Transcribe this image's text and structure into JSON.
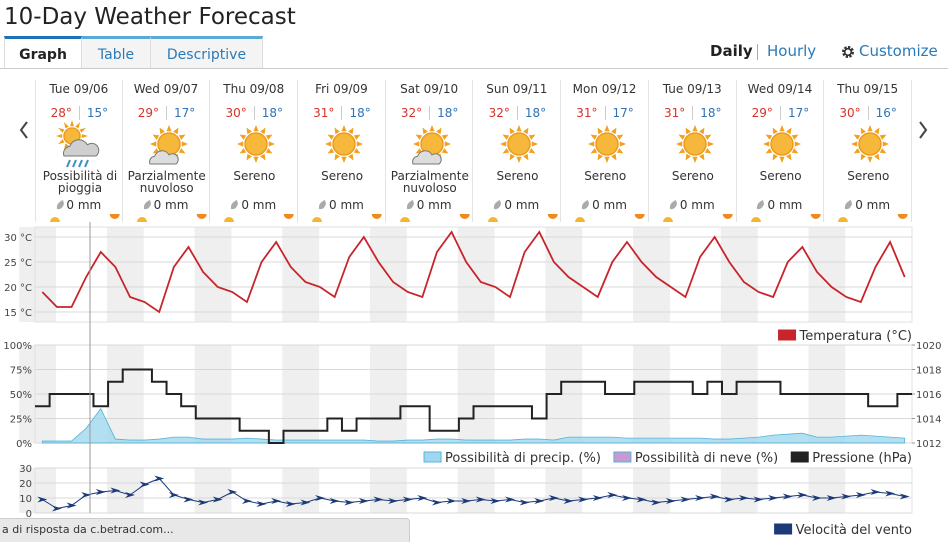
{
  "header": {
    "title": "10-Day Weather Forecast"
  },
  "tabs": [
    "Graph",
    "Table",
    "Descriptive"
  ],
  "views": [
    "Daily",
    "Hourly"
  ],
  "customize": "Customize",
  "days": [
    {
      "date": "Tue 09/06",
      "high": "28°",
      "low": "15°",
      "condition": "Possibilità di pioggia",
      "precip": "0 mm"
    },
    {
      "date": "Wed 09/07",
      "high": "29°",
      "low": "17°",
      "condition": "Parzialmente nuvoloso",
      "precip": "0 mm"
    },
    {
      "date": "Thu 09/08",
      "high": "30°",
      "low": "18°",
      "condition": "Sereno",
      "precip": "0 mm"
    },
    {
      "date": "Fri 09/09",
      "high": "31°",
      "low": "18°",
      "condition": "Sereno",
      "precip": "0 mm"
    },
    {
      "date": "Sat 09/10",
      "high": "32°",
      "low": "18°",
      "condition": "Parzialmente nuvoloso",
      "precip": "0 mm"
    },
    {
      "date": "Sun 09/11",
      "high": "32°",
      "low": "18°",
      "condition": "Sereno",
      "precip": "0 mm"
    },
    {
      "date": "Mon 09/12",
      "high": "31°",
      "low": "17°",
      "condition": "Sereno",
      "precip": "0 mm"
    },
    {
      "date": "Tue 09/13",
      "high": "31°",
      "low": "18°",
      "condition": "Sereno",
      "precip": "0 mm"
    },
    {
      "date": "Wed 09/14",
      "high": "29°",
      "low": "17°",
      "condition": "Sereno",
      "precip": "0 mm"
    },
    {
      "date": "Thu 09/15",
      "high": "30°",
      "low": "16°",
      "condition": "Sereno",
      "precip": "0 mm"
    }
  ],
  "status": "a di risposta da c.betrad.com...",
  "chart_data": [
    {
      "type": "line",
      "series": [
        {
          "name": "Temperatura (°C)",
          "color": "#c8242b",
          "values": [
            19,
            16,
            16,
            22,
            27,
            24,
            18,
            17,
            15,
            24,
            28,
            23,
            20,
            19,
            17,
            25,
            29,
            24,
            21,
            20,
            18,
            26,
            30,
            25,
            21,
            19,
            18,
            27,
            31,
            25,
            21,
            20,
            18,
            27,
            31,
            25,
            22,
            20,
            18,
            25,
            29,
            25,
            22,
            20,
            18,
            26,
            30,
            25,
            21,
            19,
            18,
            25,
            28,
            23,
            20,
            18,
            17,
            24,
            29,
            22
          ]
        }
      ],
      "ylim": [
        13,
        32
      ],
      "yticks": [
        {
          "value": 15,
          "label": "15 °C"
        },
        {
          "value": 20,
          "label": "20 °C"
        },
        {
          "value": 25,
          "label": "25 °C"
        },
        {
          "value": 30,
          "label": "30 °C"
        }
      ],
      "grid": true
    },
    {
      "type": "line",
      "series": [
        {
          "name": "Possibilità di precip. (%)",
          "type": "area",
          "color": "#9fd8ee",
          "values": [
            2,
            2,
            2,
            15,
            35,
            4,
            3,
            3,
            4,
            6,
            6,
            4,
            4,
            4,
            5,
            4,
            3,
            3,
            3,
            3,
            3,
            3,
            3,
            2,
            2,
            3,
            3,
            4,
            4,
            3,
            3,
            3,
            3,
            4,
            4,
            3,
            6,
            6,
            6,
            6,
            5,
            5,
            5,
            5,
            5,
            5,
            4,
            4,
            5,
            6,
            8,
            9,
            10,
            6,
            6,
            7,
            8,
            7,
            6,
            5
          ]
        },
        {
          "name": "Possibilità di neve (%)",
          "type": "area",
          "color": "#c79ad2",
          "values": [
            0,
            0,
            0,
            0,
            0,
            0,
            0,
            0,
            0,
            0,
            0,
            0,
            0,
            0,
            0,
            0,
            0,
            0,
            0,
            0,
            0,
            0,
            0,
            0,
            0,
            0,
            0,
            0,
            0,
            0,
            0,
            0,
            0,
            0,
            0,
            0,
            0,
            0,
            0,
            0,
            0,
            0,
            0,
            0,
            0,
            0,
            0,
            0,
            0,
            0,
            0,
            0,
            0,
            0,
            0,
            0,
            0,
            0,
            0,
            0
          ]
        },
        {
          "name": "Pressione (hPa)",
          "color": "#222222",
          "axis": "y2",
          "values": [
            1015,
            1016,
            1016,
            1016,
            1015,
            1017,
            1018,
            1018,
            1017,
            1016,
            1015,
            1014,
            1014,
            1014,
            1013,
            1013,
            1012,
            1013,
            1013,
            1013,
            1014,
            1013,
            1014,
            1014,
            1014,
            1015,
            1015,
            1013,
            1013,
            1014,
            1015,
            1015,
            1015,
            1015,
            1014,
            1016,
            1017,
            1017,
            1017,
            1016,
            1016,
            1017,
            1017,
            1017,
            1017,
            1016,
            1017,
            1016,
            1017,
            1017,
            1017,
            1016,
            1016,
            1016,
            1016,
            1016,
            1016,
            1015,
            1015,
            1016
          ]
        }
      ],
      "ylim": [
        0,
        100
      ],
      "yticks": [
        {
          "value": 0,
          "label": "0%"
        },
        {
          "value": 25,
          "label": "25%"
        },
        {
          "value": 50,
          "label": "50%"
        },
        {
          "value": 75,
          "label": "75%"
        },
        {
          "value": 100,
          "label": "100%"
        }
      ],
      "y2lim": [
        1012,
        1020
      ],
      "y2ticks": [
        1012,
        1014,
        1016,
        1018,
        1020
      ],
      "grid": true
    },
    {
      "type": "line",
      "series": [
        {
          "name": "Velocità del vento",
          "color": "#1c3a78",
          "values": [
            9,
            3,
            5,
            12,
            14,
            15,
            12,
            19,
            23,
            12,
            9,
            7,
            9,
            14,
            8,
            6,
            8,
            6,
            7,
            10,
            8,
            7,
            8,
            9,
            8,
            9,
            10,
            7,
            8,
            8,
            9,
            8,
            9,
            7,
            8,
            10,
            8,
            9,
            10,
            12,
            10,
            9,
            7,
            8,
            9,
            10,
            11,
            9,
            10,
            9,
            10,
            11,
            12,
            10,
            10,
            11,
            12,
            14,
            13,
            11
          ]
        }
      ],
      "ylim": [
        0,
        30
      ],
      "yticks": [
        0,
        10,
        20,
        30
      ],
      "grid": true
    }
  ]
}
